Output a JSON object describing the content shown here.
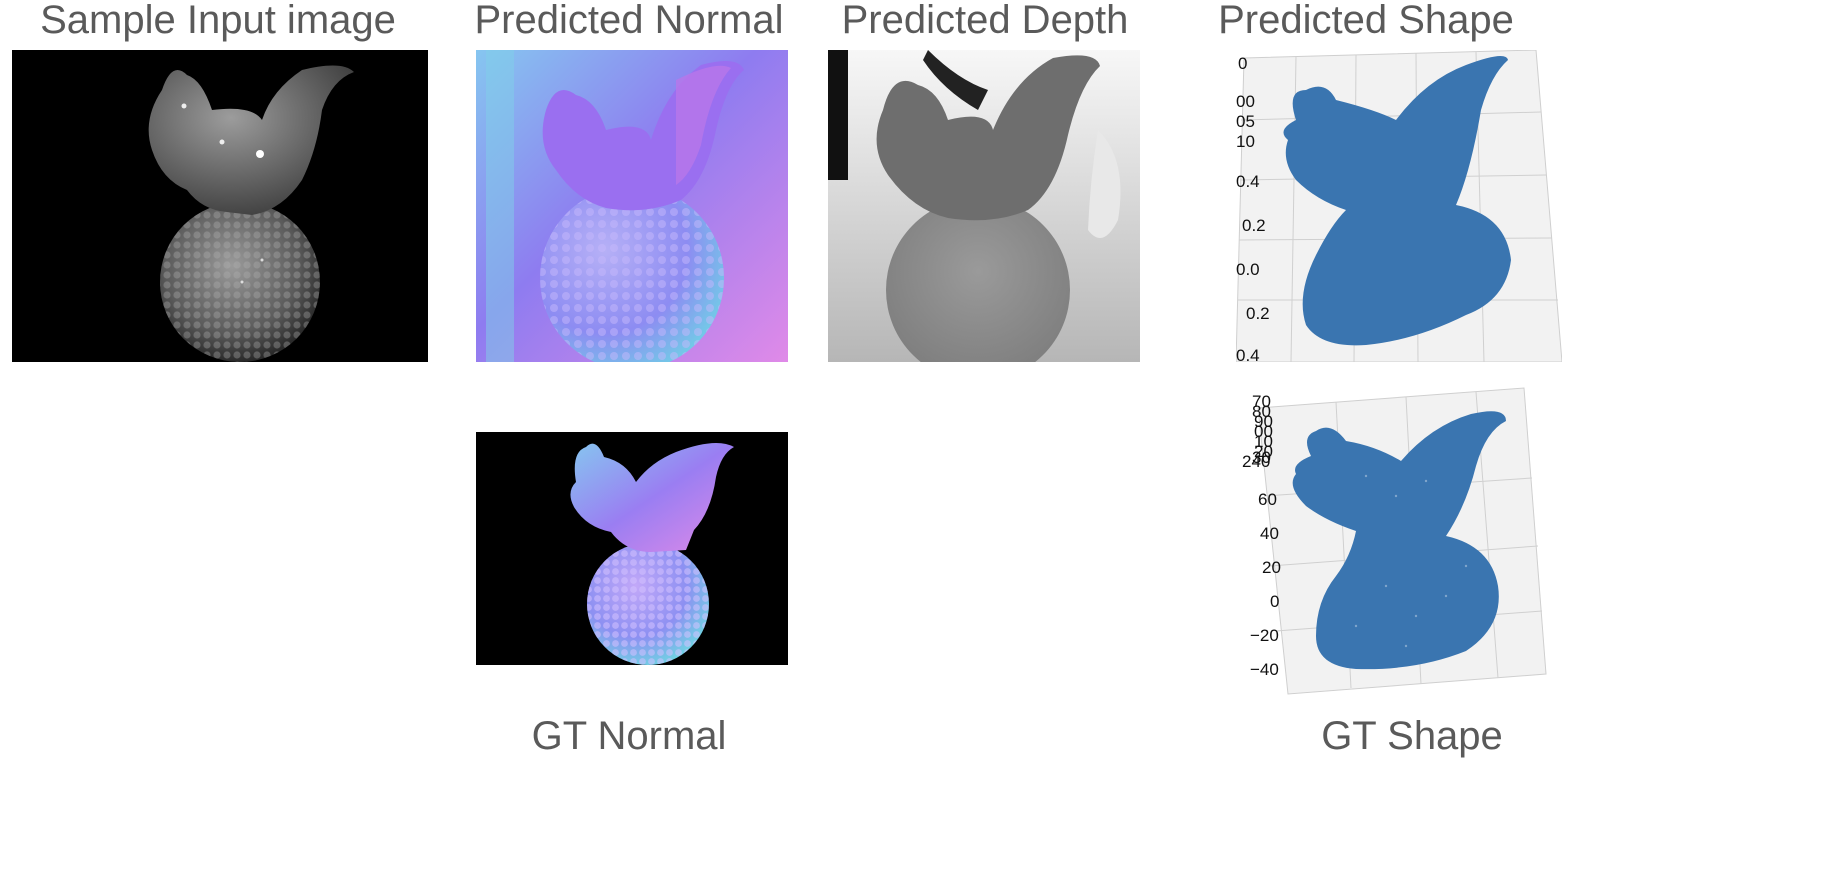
{
  "titles": {
    "input": "Sample Input image",
    "pred_normal": "Predicted Normal",
    "pred_depth": "Predicted Depth",
    "pred_shape": "Predicted Shape",
    "gt_normal": "GT Normal",
    "gt_shape": "GT Shape"
  },
  "pred_shape_ticks": [
    "0",
    "00",
    "05",
    "10",
    "0.4",
    "0.2",
    "0.0",
    "0.2",
    "0.4"
  ],
  "gt_shape_ticks_top": [
    "70",
    "80",
    "90",
    "00",
    "10",
    "20",
    "30",
    "240"
  ],
  "gt_shape_ticks": [
    "60",
    "40",
    "20",
    "0",
    "−20",
    "−40"
  ],
  "colors": {
    "title_text": "#5a5a5a",
    "point_cloud": "#3a75b0",
    "axes_pane": "#f2f2f2",
    "normal_purple": "#8b6cf0",
    "normal_cyan": "#7fd0e8",
    "normal_pink": "#d88ae8"
  }
}
